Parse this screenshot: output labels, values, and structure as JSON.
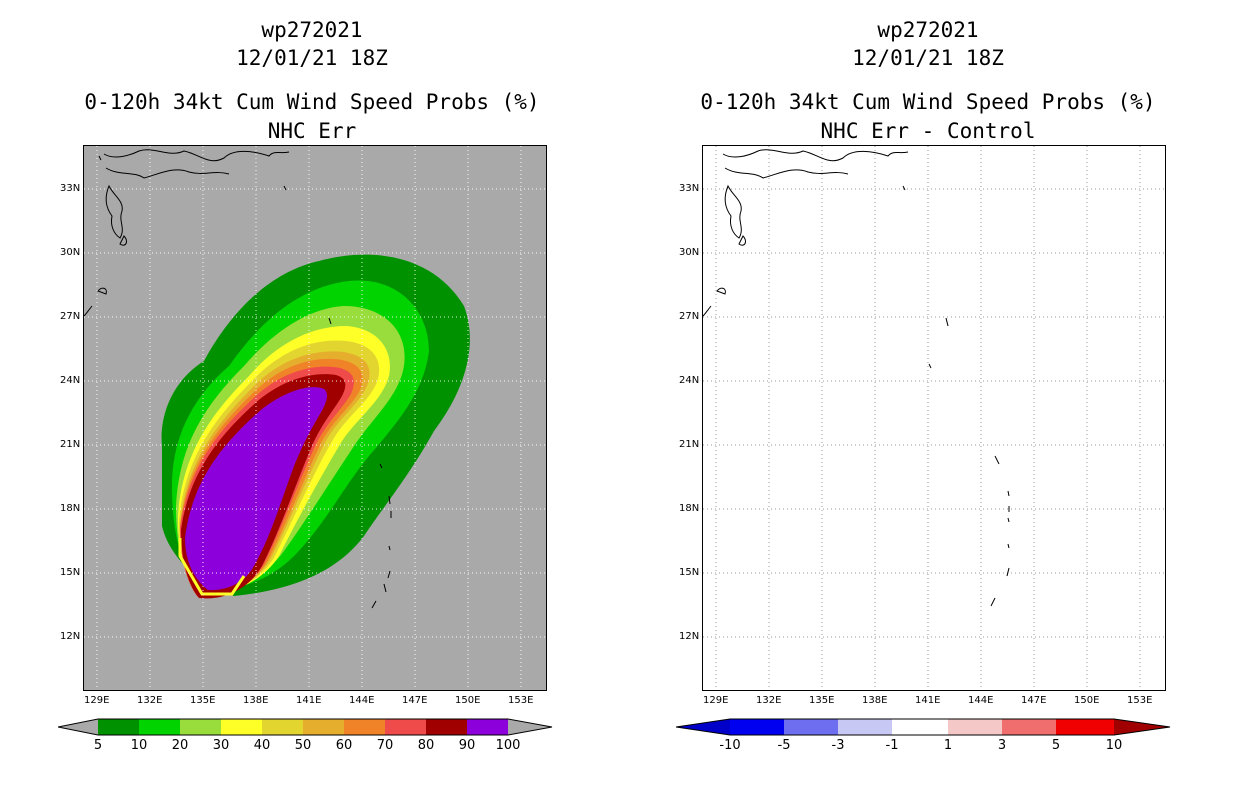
{
  "left": {
    "title_line1": "wp272021",
    "title_line2": "12/01/21 18Z",
    "title_line3": "0-120h 34kt Cum Wind Speed Probs (%)",
    "title_line4": "NHC Err",
    "background_color": "#a9a9a9",
    "colorbar": {
      "colors": [
        "#009100",
        "#00d300",
        "#98dd3c",
        "#ffff28",
        "#e3d530",
        "#e6ae2d",
        "#f08228",
        "#f04b4b",
        "#a00000",
        "#8c00dc"
      ],
      "labels": [
        "5",
        "10",
        "20",
        "30",
        "40",
        "50",
        "60",
        "70",
        "80",
        "90",
        "100"
      ]
    }
  },
  "right": {
    "title_line1": "wp272021",
    "title_line2": "12/01/21 18Z",
    "title_line3": "0-120h 34kt Cum Wind Speed Probs (%)",
    "title_line4": "NHC Err - Control",
    "background_color": "#ffffff",
    "colorbar": {
      "colors": [
        "#0000c8",
        "#0000f0",
        "#6e6ef0",
        "#c8c8f5",
        "#ffffff",
        "#f5c8c8",
        "#f06e6e",
        "#f00000",
        "#a00000"
      ],
      "labels": [
        "-10",
        "-5",
        "-3",
        "-1",
        "1",
        "3",
        "5",
        "10"
      ]
    }
  },
  "axes": {
    "lon_labels": [
      "129E",
      "132E",
      "135E",
      "138E",
      "141E",
      "144E",
      "147E",
      "150E",
      "153E"
    ],
    "lat_labels": [
      "33N",
      "30N",
      "27N",
      "24N",
      "21N",
      "18N",
      "15N",
      "12N"
    ]
  }
}
